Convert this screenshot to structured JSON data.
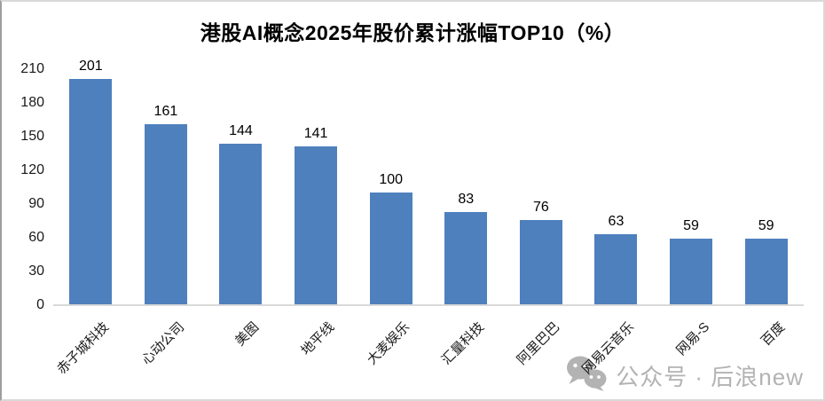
{
  "chart_data": {
    "type": "bar",
    "title": "港股AI概念2025年股价累计涨幅TOP10（%）",
    "categories": [
      "赤子城科技",
      "心动公司",
      "美图",
      "地平线",
      "大麦娱乐",
      "汇量科技",
      "阿里巴巴",
      "网易云音乐",
      "网易-S",
      "百度"
    ],
    "values": [
      201,
      161,
      144,
      141,
      100,
      83,
      76,
      63,
      59,
      59
    ],
    "xlabel": "",
    "ylabel": "",
    "ylim": [
      0,
      210
    ],
    "yticks": [
      0,
      30,
      60,
      90,
      120,
      150,
      180,
      210
    ],
    "grid": false,
    "legend": "none",
    "data_labels": true,
    "bar_color": "#4E80BD",
    "axis_line_color": "#D9D9D9",
    "text_color": "#1a1a1a"
  },
  "watermark": {
    "icon": "wechat-icon",
    "text": "公众号 · 后浪new",
    "color": "#B3B3B3"
  }
}
